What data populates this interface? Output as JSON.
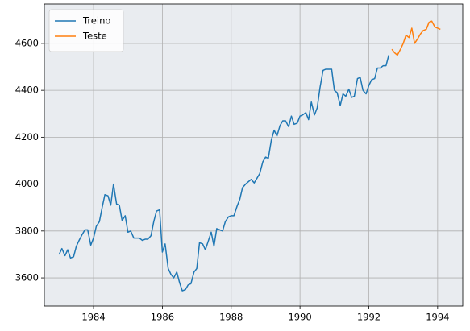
{
  "chart_data": {
    "type": "line",
    "series": [
      {
        "name": "Treino",
        "color": "#1f77b4",
        "x": [
          1983.0,
          1983.08,
          1983.17,
          1983.25,
          1983.33,
          1983.42,
          1983.5,
          1983.58,
          1983.67,
          1983.75,
          1983.83,
          1983.92,
          1984.0,
          1984.08,
          1984.17,
          1984.25,
          1984.33,
          1984.42,
          1984.5,
          1984.58,
          1984.67,
          1984.75,
          1984.83,
          1984.92,
          1985.0,
          1985.08,
          1985.17,
          1985.25,
          1985.33,
          1985.42,
          1985.5,
          1985.58,
          1985.67,
          1985.75,
          1985.83,
          1985.92,
          1986.0,
          1986.08,
          1986.17,
          1986.25,
          1986.33,
          1986.42,
          1986.5,
          1986.58,
          1986.67,
          1986.75,
          1986.83,
          1986.92,
          1987.0,
          1987.08,
          1987.17,
          1987.25,
          1987.33,
          1987.42,
          1987.5,
          1987.58,
          1987.67,
          1987.75,
          1987.83,
          1987.92,
          1988.0,
          1988.08,
          1988.17,
          1988.25,
          1988.33,
          1988.42,
          1988.5,
          1988.58,
          1988.67,
          1988.75,
          1988.83,
          1988.92,
          1989.0,
          1989.08,
          1989.17,
          1989.25,
          1989.33,
          1989.42,
          1989.5,
          1989.58,
          1989.67,
          1989.75,
          1989.83,
          1989.92,
          1990.0,
          1990.08,
          1990.17,
          1990.25,
          1990.33,
          1990.42,
          1990.5,
          1990.58,
          1990.67,
          1990.75,
          1990.83,
          1990.92,
          1991.0,
          1991.08,
          1991.17,
          1991.25,
          1991.33,
          1991.42,
          1991.5,
          1991.58,
          1991.67,
          1991.75,
          1991.83,
          1991.92,
          1992.0,
          1992.08,
          1992.17,
          1992.25,
          1992.33,
          1992.42,
          1992.5,
          1992.58
        ],
        "values": [
          3700,
          3725,
          3695,
          3720,
          3685,
          3690,
          3735,
          3760,
          3785,
          3805,
          3805,
          3740,
          3770,
          3820,
          3840,
          3900,
          3955,
          3950,
          3910,
          4000,
          3915,
          3910,
          3845,
          3865,
          3795,
          3800,
          3770,
          3770,
          3770,
          3760,
          3765,
          3765,
          3780,
          3840,
          3885,
          3890,
          3710,
          3745,
          3640,
          3615,
          3600,
          3625,
          3580,
          3545,
          3550,
          3570,
          3575,
          3625,
          3640,
          3750,
          3745,
          3720,
          3755,
          3795,
          3735,
          3810,
          3805,
          3800,
          3840,
          3860,
          3865,
          3865,
          3905,
          3935,
          3985,
          4000,
          4010,
          4020,
          4005,
          4025,
          4045,
          4095,
          4115,
          4110,
          4190,
          4230,
          4205,
          4250,
          4270,
          4270,
          4245,
          4290,
          4255,
          4260,
          4290,
          4295,
          4305,
          4275,
          4350,
          4295,
          4325,
          4410,
          4485,
          4490,
          4490,
          4490,
          4400,
          4390,
          4335,
          4385,
          4375,
          4405,
          4370,
          4375,
          4450,
          4455,
          4400,
          4385,
          4420,
          4445,
          4450,
          4495,
          4495,
          4505,
          4505,
          4550
        ]
      },
      {
        "name": "Teste",
        "color": "#ff7f0e",
        "x": [
          1992.67,
          1992.75,
          1992.83,
          1992.92,
          1993.0,
          1993.08,
          1993.17,
          1993.25,
          1993.33,
          1993.42,
          1993.5,
          1993.58,
          1993.67,
          1993.75,
          1993.83,
          1993.92,
          1994.0,
          1994.08
        ],
        "values": [
          4575,
          4560,
          4550,
          4575,
          4600,
          4635,
          4625,
          4665,
          4600,
          4620,
          4640,
          4655,
          4660,
          4690,
          4695,
          4670,
          4665,
          4660
        ]
      }
    ],
    "xlim": [
      1982.57,
      1994.73
    ],
    "xticks": [
      1984,
      1986,
      1988,
      1990,
      1992,
      1994
    ],
    "ylim": [
      3480,
      4768
    ],
    "yticks": [
      3600,
      3800,
      4000,
      4200,
      4400,
      4600
    ],
    "grid": true,
    "legend": "upper left"
  }
}
